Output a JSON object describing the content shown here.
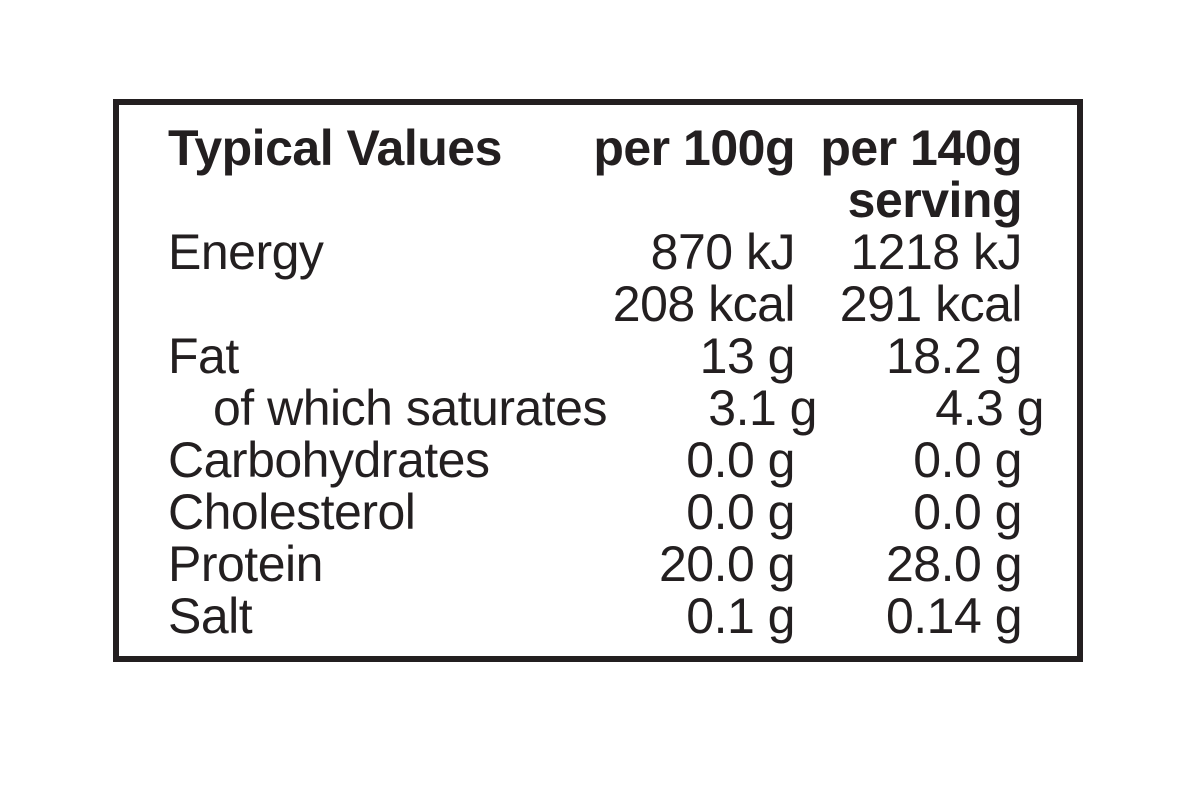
{
  "colors": {
    "ink": "#231f20",
    "paper": "#ffffff"
  },
  "nutrition": {
    "title": "Typical Values",
    "columns": {
      "per100g": "per 100g",
      "per140g_line1": "per 140g",
      "per140g_line2": "serving"
    },
    "rows": [
      {
        "label": "Energy",
        "per_100g": "870 kJ",
        "per_140g": "1218 kJ"
      },
      {
        "label": "",
        "per_100g": "208 kcal",
        "per_140g": "291 kcal"
      },
      {
        "label": "Fat",
        "per_100g": "13 g",
        "per_140g": "18.2 g"
      },
      {
        "label": "of which saturates",
        "per_100g": "3.1 g",
        "per_140g": "4.3 g"
      },
      {
        "label": "Carbohydrates",
        "per_100g": "0.0 g",
        "per_140g": "0.0 g"
      },
      {
        "label": "Cholesterol",
        "per_100g": "0.0 g",
        "per_140g": "0.0 g"
      },
      {
        "label": "Protein",
        "per_100g": "20.0 g",
        "per_140g": "28.0 g"
      },
      {
        "label": "Salt",
        "per_100g": "0.1 g",
        "per_140g": "0.14 g"
      }
    ]
  }
}
